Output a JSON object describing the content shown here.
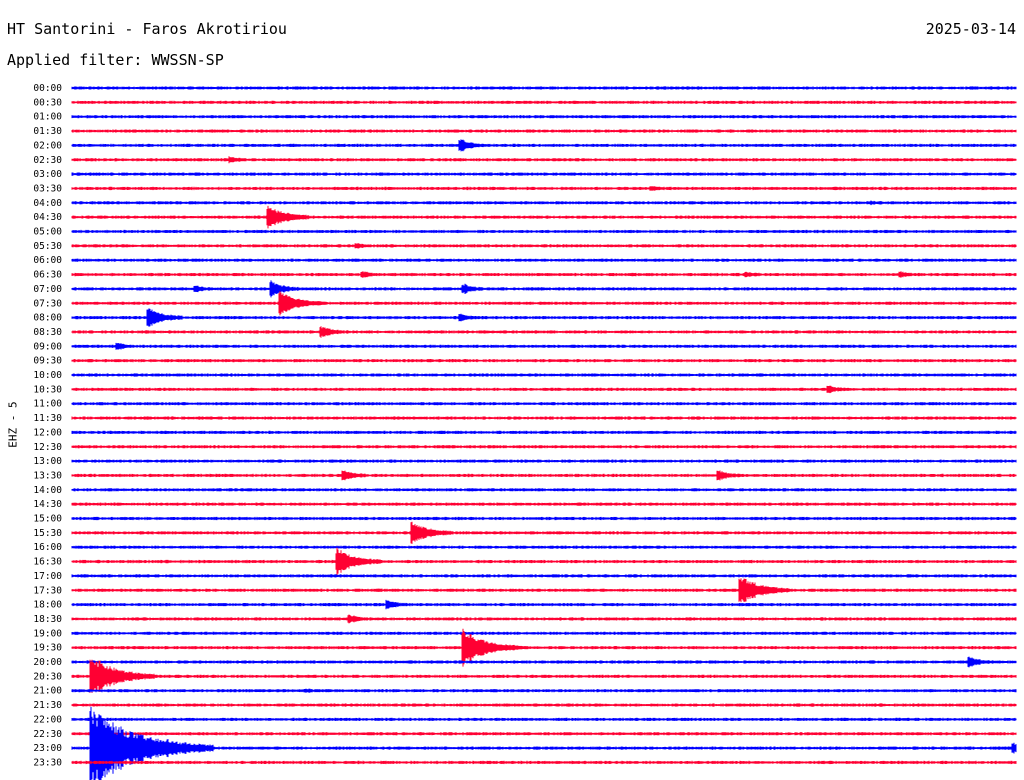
{
  "header": {
    "station": "HT Santorini - Faros Akrotiriou",
    "date": "2025-03-14",
    "filter": "Applied filter: WWSSN-SP"
  },
  "colors": {
    "background": "#ffffff",
    "text": "#000000",
    "trace_blue": "#0000ff",
    "trace_red": "#ff0033"
  },
  "chart_data": {
    "type": "line",
    "title": "HT Santorini - Faros Akrotiriou",
    "subtitle": "Applied filter: WWSSN-SP",
    "ylabel": "EHZ - 5",
    "xlabel": "",
    "trace_minutes": 30,
    "trace_colors": [
      "blue",
      "red"
    ],
    "row_labels": [
      "00:00",
      "00:30",
      "01:00",
      "01:30",
      "02:00",
      "02:30",
      "03:00",
      "03:30",
      "04:00",
      "04:30",
      "05:00",
      "05:30",
      "06:00",
      "06:30",
      "07:00",
      "07:30",
      "08:00",
      "08:30",
      "09:00",
      "09:30",
      "10:00",
      "10:30",
      "11:00",
      "11:30",
      "12:00",
      "12:30",
      "13:00",
      "13:30",
      "14:00",
      "14:30",
      "15:00",
      "15:30",
      "16:00",
      "16:30",
      "17:00",
      "17:30",
      "18:00",
      "18:30",
      "19:00",
      "19:30",
      "20:00",
      "20:30",
      "21:00",
      "21:30",
      "22:00",
      "22:30",
      "23:00",
      "23:30"
    ],
    "events": [
      {
        "row": "02:00",
        "minute": 12.3,
        "size": 0.6
      },
      {
        "row": "02:30",
        "minute": 5.0,
        "size": 0.25
      },
      {
        "row": "03:30",
        "minute": 18.4,
        "size": 0.15
      },
      {
        "row": "04:00",
        "minute": 25.4,
        "size": 0.1
      },
      {
        "row": "04:30",
        "minute": 6.2,
        "size": 1.3
      },
      {
        "row": "05:30",
        "minute": 9.0,
        "size": 0.2
      },
      {
        "row": "06:30",
        "minute": 9.2,
        "size": 0.25
      },
      {
        "row": "06:30",
        "minute": 21.4,
        "size": 0.2
      },
      {
        "row": "06:30",
        "minute": 26.3,
        "size": 0.2
      },
      {
        "row": "07:00",
        "minute": 3.9,
        "size": 0.25
      },
      {
        "row": "07:00",
        "minute": 6.3,
        "size": 0.8
      },
      {
        "row": "07:00",
        "minute": 12.4,
        "size": 0.45
      },
      {
        "row": "07:30",
        "minute": 6.6,
        "size": 1.3
      },
      {
        "row": "08:00",
        "minute": 2.4,
        "size": 1.0
      },
      {
        "row": "08:00",
        "minute": 12.3,
        "size": 0.35
      },
      {
        "row": "08:30",
        "minute": 7.9,
        "size": 0.55
      },
      {
        "row": "09:00",
        "minute": 1.4,
        "size": 0.3
      },
      {
        "row": "10:30",
        "minute": 24.0,
        "size": 0.3
      },
      {
        "row": "13:30",
        "minute": 8.6,
        "size": 0.5
      },
      {
        "row": "13:30",
        "minute": 20.5,
        "size": 0.5
      },
      {
        "row": "15:30",
        "minute": 10.8,
        "size": 1.2
      },
      {
        "row": "16:30",
        "minute": 8.4,
        "size": 1.4
      },
      {
        "row": "17:30",
        "minute": 21.2,
        "size": 1.6
      },
      {
        "row": "18:00",
        "minute": 10.0,
        "size": 0.4
      },
      {
        "row": "18:30",
        "minute": 8.8,
        "size": 0.35
      },
      {
        "row": "19:30",
        "minute": 12.4,
        "size": 2.0
      },
      {
        "row": "20:00",
        "minute": 28.5,
        "size": 0.45
      },
      {
        "row": "20:30",
        "minute": 0.6,
        "size": 2.2
      },
      {
        "row": "21:00",
        "minute": 7.4,
        "size": 0.1
      },
      {
        "row": "23:00",
        "minute": 0.6,
        "size": 4.5
      },
      {
        "row": "23:00",
        "minute": 2.9,
        "size": 0.25
      },
      {
        "row": "23:00",
        "minute": 29.9,
        "size": 0.5
      }
    ]
  }
}
